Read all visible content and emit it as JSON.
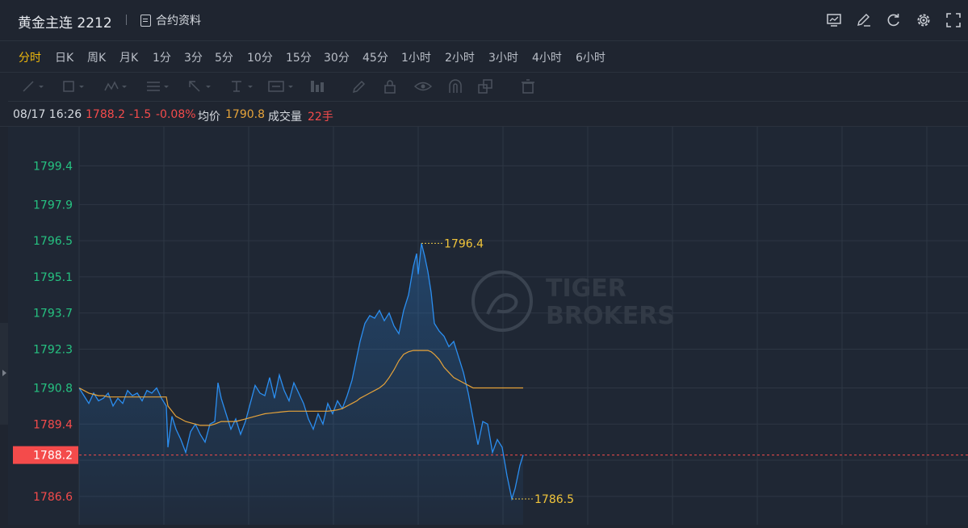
{
  "header": {
    "title": "黄金主连 2212",
    "contract_label": "合约资料",
    "tools": [
      "chart-settings-icon",
      "edit-icon",
      "refresh-icon",
      "gear-icon",
      "fullscreen-icon"
    ]
  },
  "periods": {
    "items": [
      "分时",
      "日K",
      "周K",
      "月K",
      "1分",
      "3分",
      "5分",
      "10分",
      "15分",
      "30分",
      "45分",
      "1小时",
      "2小时",
      "3小时",
      "4小时",
      "6小时"
    ],
    "active": "分时"
  },
  "draw_tools": [
    "line-tool-icon",
    "rect-tool-icon",
    "pattern-tool-icon",
    "fib-tool-icon",
    "arrow-tool-icon",
    "text-tool-icon",
    "label-tool-icon",
    "measure-tool-icon",
    "pen-icon",
    "lock-icon",
    "eye-icon",
    "magnet-icon",
    "copy-icon",
    "trash-icon"
  ],
  "info": {
    "datetime": "08/17 16:26",
    "price": "1788.2",
    "change": "-1.5",
    "change_pct": "-0.08%",
    "avg_label": "均价",
    "avg_value": "1790.8",
    "vol_label": "成交量",
    "vol_value": "22手"
  },
  "colors": {
    "up": "#26c281",
    "down": "#f44b4b",
    "price_line": "#2b8ef0",
    "avg_line": "#e6a33a",
    "accent": "#f0b90b"
  },
  "watermark": {
    "line1": "TIGER",
    "line2": "BROKERS"
  },
  "chart_data": {
    "type": "line",
    "y_ticks": [
      {
        "label": "1799.4",
        "color": "up"
      },
      {
        "label": "1797.9",
        "color": "up"
      },
      {
        "label": "1796.5",
        "color": "up"
      },
      {
        "label": "1795.1",
        "color": "up"
      },
      {
        "label": "1793.7",
        "color": "up"
      },
      {
        "label": "1792.3",
        "color": "up"
      },
      {
        "label": "1790.8",
        "color": "up"
      },
      {
        "label": "1789.4",
        "color": "down"
      },
      {
        "label": "1786.6",
        "color": "down"
      }
    ],
    "ylim": [
      1785.5,
      1800.6
    ],
    "current_price": "1788.2",
    "max_label": "1796.4",
    "min_label": "1786.5",
    "max_value": 1796.4,
    "min_value": 1786.5,
    "x": [
      0,
      6,
      12,
      18,
      24,
      30,
      36,
      42,
      48,
      54,
      60,
      66,
      72,
      78,
      84,
      90,
      96,
      102,
      108,
      110,
      115,
      120,
      126,
      132,
      138,
      144,
      150,
      156,
      162,
      168,
      172,
      176,
      182,
      188,
      194,
      200,
      206,
      212,
      218,
      224,
      230,
      236,
      242,
      248,
      254,
      260,
      266,
      272,
      278,
      284,
      290,
      296,
      302,
      308,
      314,
      320,
      326,
      332,
      338,
      344,
      348,
      354,
      360,
      366,
      372,
      378,
      384,
      390,
      396,
      402,
      408,
      414,
      418,
      420,
      424,
      428,
      432,
      436,
      440,
      446,
      452,
      458,
      464,
      470,
      476,
      482,
      488,
      494,
      500,
      506,
      512,
      518,
      524,
      530,
      536,
      540,
      546,
      550
    ],
    "series": [
      {
        "key": "price",
        "values": [
          1790.8,
          1790.5,
          1790.2,
          1790.6,
          1790.3,
          1790.4,
          1790.6,
          1790.1,
          1790.4,
          1790.2,
          1790.7,
          1790.5,
          1790.6,
          1790.3,
          1790.7,
          1790.6,
          1790.8,
          1790.4,
          1790.1,
          1788.5,
          1789.7,
          1789.2,
          1788.8,
          1788.3,
          1789.1,
          1789.4,
          1789.0,
          1788.7,
          1789.4,
          1789.5,
          1791.0,
          1790.4,
          1789.8,
          1789.2,
          1789.6,
          1789.0,
          1789.5,
          1790.2,
          1790.9,
          1790.6,
          1790.5,
          1791.2,
          1790.4,
          1791.3,
          1790.7,
          1790.3,
          1791.0,
          1790.6,
          1790.2,
          1789.6,
          1789.2,
          1789.8,
          1789.4,
          1790.2,
          1789.8,
          1790.3,
          1790.0,
          1790.5,
          1791.1,
          1792.0,
          1792.6,
          1793.3,
          1793.6,
          1793.5,
          1793.8,
          1793.4,
          1793.7,
          1793.2,
          1792.9,
          1793.8,
          1794.4,
          1795.5,
          1796.0,
          1795.2,
          1796.4,
          1795.9,
          1795.3,
          1794.5,
          1793.3,
          1793.0,
          1792.8,
          1792.4,
          1792.6,
          1792.0,
          1791.4,
          1790.6,
          1789.6,
          1788.6,
          1789.5,
          1789.4,
          1788.3,
          1788.8,
          1788.5,
          1787.4,
          1786.5,
          1786.9,
          1787.8,
          1788.2
        ]
      },
      {
        "key": "average",
        "values": [
          1790.8,
          1790.7,
          1790.6,
          1790.55,
          1790.5,
          1790.5,
          1790.45,
          1790.45,
          1790.45,
          1790.45,
          1790.45,
          1790.45,
          1790.45,
          1790.45,
          1790.45,
          1790.45,
          1790.45,
          1790.45,
          1790.45,
          1790.1,
          1789.9,
          1789.7,
          1789.6,
          1789.5,
          1789.45,
          1789.4,
          1789.35,
          1789.35,
          1789.35,
          1789.4,
          1789.45,
          1789.5,
          1789.5,
          1789.5,
          1789.5,
          1789.55,
          1789.6,
          1789.65,
          1789.7,
          1789.75,
          1789.8,
          1789.82,
          1789.84,
          1789.86,
          1789.88,
          1789.9,
          1789.9,
          1789.9,
          1789.9,
          1789.9,
          1789.9,
          1789.9,
          1789.9,
          1789.9,
          1789.92,
          1789.95,
          1790.0,
          1790.1,
          1790.2,
          1790.3,
          1790.4,
          1790.5,
          1790.6,
          1790.7,
          1790.8,
          1790.95,
          1791.2,
          1791.5,
          1791.85,
          1792.1,
          1792.2,
          1792.25,
          1792.25,
          1792.25,
          1792.25,
          1792.25,
          1792.25,
          1792.2,
          1792.1,
          1791.9,
          1791.6,
          1791.4,
          1791.2,
          1791.1,
          1791.0,
          1790.9,
          1790.8,
          1790.8,
          1790.8,
          1790.8,
          1790.8,
          1790.8,
          1790.8,
          1790.8,
          1790.8,
          1790.8,
          1790.8,
          1790.8
        ]
      }
    ]
  }
}
